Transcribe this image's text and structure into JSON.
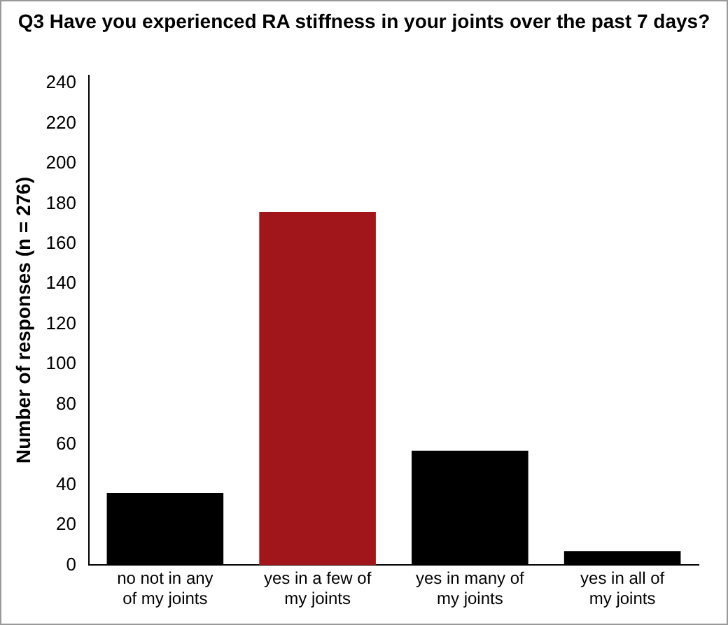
{
  "chart_data": {
    "type": "bar",
    "title": "Q3 Have you experienced RA stiffness in your joints over the past 7 days?",
    "ylabel": "Number of responses (n = 276)",
    "categories": [
      "no not in any of my joints",
      "yes in a few of my joints",
      "yes in many of my joints",
      "yes in all of my joints"
    ],
    "values": [
      36,
      176,
      57,
      7
    ],
    "colors": [
      "#000000",
      "#a0161b",
      "#000000",
      "#000000"
    ],
    "ylim": [
      0,
      244
    ],
    "yticks": [
      0,
      20,
      40,
      60,
      80,
      100,
      120,
      140,
      160,
      180,
      200,
      220,
      240
    ],
    "grid": false,
    "legend": false
  }
}
